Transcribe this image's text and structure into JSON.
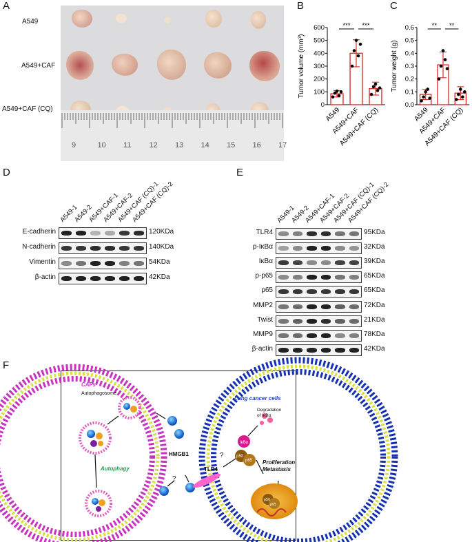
{
  "panels": {
    "A": {
      "letter": "A",
      "rows": [
        "A549",
        "A549+CAF",
        "A549+CAF (CQ)"
      ],
      "ruler_ticks": [
        "9",
        "10",
        "11",
        "12",
        "13",
        "14",
        "15",
        "16",
        "17"
      ]
    },
    "B": {
      "letter": "B"
    },
    "C": {
      "letter": "C"
    },
    "D": {
      "letter": "D",
      "lanes": [
        "A549-1",
        "A549-2",
        "A549+CAF-1",
        "A549+CAF-2",
        "A549+CAF (CQ)-1",
        "A549+CAF (CQ)-2"
      ],
      "rows": [
        {
          "label": "E-cadherin",
          "kda": "120KDa"
        },
        {
          "label": "N-cadherin",
          "kda": "140KDa"
        },
        {
          "label": "Vimentin",
          "kda": "54KDa"
        },
        {
          "label": "β-actin",
          "kda": "42KDa"
        }
      ]
    },
    "E": {
      "letter": "E",
      "lanes": [
        "A549-1",
        "A549-2",
        "A549+CAF-1",
        "A549+CAF-2",
        "A549+CAF (CQ)-1",
        "A549+CAF (CQ)-2"
      ],
      "rows": [
        {
          "label": "TLR4",
          "kda": "95KDa"
        },
        {
          "label": "p-IκBα",
          "kda": "32KDa"
        },
        {
          "label": "IκBα",
          "kda": "39KDa"
        },
        {
          "label": "p-p65",
          "kda": "65KDa"
        },
        {
          "label": "p65",
          "kda": "65KDa"
        },
        {
          "label": "MMP2",
          "kda": "72KDa"
        },
        {
          "label": "Twist",
          "kda": "21KDa"
        },
        {
          "label": "MMP9",
          "kda": "78KDa"
        },
        {
          "label": "β-actin",
          "kda": "42KDa"
        }
      ]
    },
    "F": {
      "letter": "F",
      "cafs": "CAFs",
      "autophagosome": "Autophagosome",
      "autophagy": "Autophagy",
      "hmgb1": "HMGB1",
      "tlr4": "TLR4",
      "question": "?",
      "lung": "Lung cancer cells",
      "degradation": "Degradation\nof IκBα",
      "ikba": "IκBα",
      "p50": "p50",
      "p65": "p65",
      "prolif": "Proliferation\nMetastasis"
    }
  },
  "chart_data": [
    {
      "type": "bar",
      "ylabel": "Tumor volume (mm³)",
      "ylim": [
        0,
        600
      ],
      "yticks": [
        0,
        100,
        200,
        300,
        400,
        500,
        600
      ],
      "categories": [
        "A549",
        "A549+CAF",
        "A549+CAF (CQ)"
      ],
      "values": [
        85,
        400,
        125
      ],
      "errors": [
        25,
        105,
        50
      ],
      "points": [
        [
          60,
          90,
          105,
          70,
          100
        ],
        [
          300,
          420,
          500,
          380,
          470
        ],
        [
          80,
          140,
          160,
          110,
          130
        ]
      ],
      "significance": [
        {
          "from": 0,
          "to": 1,
          "label": "***"
        },
        {
          "from": 1,
          "to": 2,
          "label": "***"
        }
      ]
    },
    {
      "type": "bar",
      "ylabel": "Tumor weight (g)",
      "ylim": [
        0,
        0.6
      ],
      "yticks": [
        0.0,
        0.1,
        0.2,
        0.3,
        0.4,
        0.5,
        0.6
      ],
      "categories": [
        "A549",
        "A549+CAF",
        "A549+CAF (CQ)"
      ],
      "values": [
        0.08,
        0.31,
        0.09
      ],
      "errors": [
        0.04,
        0.1,
        0.05
      ],
      "points": [
        [
          0.03,
          0.06,
          0.1,
          0.12,
          0.05
        ],
        [
          0.2,
          0.3,
          0.42,
          0.35,
          0.28
        ],
        [
          0.04,
          0.08,
          0.12,
          0.06,
          0.1
        ]
      ],
      "significance": [
        {
          "from": 0,
          "to": 1,
          "label": "**"
        },
        {
          "from": 1,
          "to": 2,
          "label": "**"
        }
      ]
    }
  ]
}
